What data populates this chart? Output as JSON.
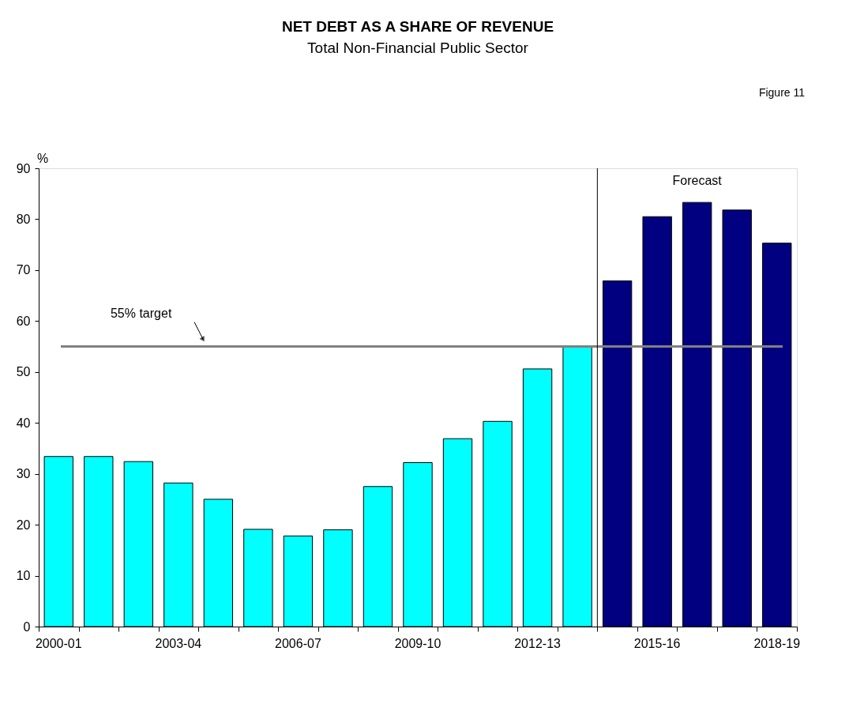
{
  "chart_data": {
    "type": "bar",
    "title": "NET DEBT AS A SHARE OF REVENUE",
    "subtitle": "Total Non-Financial Public Sector",
    "ylabel": "%",
    "categories": [
      "2000-01",
      null,
      null,
      "2003-04",
      null,
      null,
      "2006-07",
      null,
      null,
      "2009-10",
      null,
      null,
      "2012-13",
      null,
      null,
      "2015-16",
      null,
      null,
      "2018-19"
    ],
    "values": [
      33.4,
      33.4,
      32.4,
      28.2,
      25.0,
      19.1,
      17.8,
      19.0,
      27.5,
      32.2,
      36.9,
      40.3,
      50.6,
      54.9,
      67.9,
      80.5,
      83.3,
      81.8,
      75.3
    ],
    "colors": [
      "#00ffff",
      "#00ffff",
      "#00ffff",
      "#00ffff",
      "#00ffff",
      "#00ffff",
      "#00ffff",
      "#00ffff",
      "#00ffff",
      "#00ffff",
      "#00ffff",
      "#00ffff",
      "#00ffff",
      "#00ffff",
      "#000080",
      "#000080",
      "#000080",
      "#000080",
      "#000080"
    ],
    "ylim": [
      0,
      90
    ],
    "yticks": [
      0,
      10,
      20,
      30,
      40,
      50,
      60,
      70,
      80,
      90
    ],
    "grid": false,
    "ref_lines": [
      {
        "axis": "y",
        "value": 55,
        "label": "55% target",
        "color": "#808080"
      }
    ],
    "annotations": [
      "Figure 11",
      "Forecast"
    ]
  }
}
